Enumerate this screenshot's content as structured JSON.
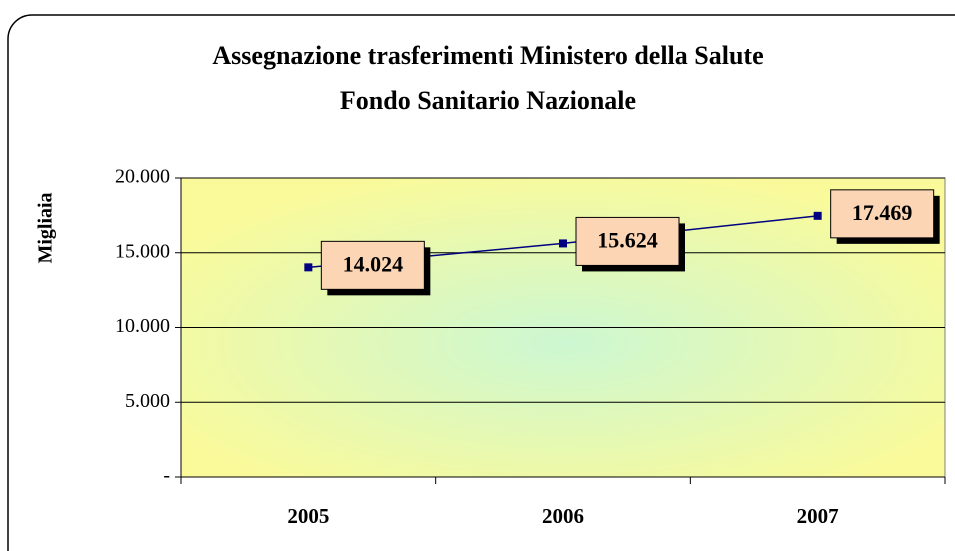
{
  "chart_data": {
    "type": "line",
    "title": "Assegnazione trasferimenti Ministero della Salute",
    "subtitle": "Fondo Sanitario Nazionale",
    "y_label": "Migliaia",
    "categories": [
      "2005",
      "2006",
      "2007"
    ],
    "series": [
      {
        "name": "Fondo Sanitario Nazionale",
        "color": "#000080",
        "values": [
          14024,
          15624,
          17469
        ],
        "value_labels": [
          "14.024",
          "15.624",
          "17.469"
        ]
      }
    ],
    "ylim": [
      0,
      20000
    ],
    "yticks": [
      {
        "value": 0,
        "label": "-"
      },
      {
        "value": 5000,
        "label": "5.000"
      },
      {
        "value": 10000,
        "label": "10.000"
      },
      {
        "value": 15000,
        "label": "15.000"
      },
      {
        "value": 20000,
        "label": "20.000"
      }
    ],
    "grid": true
  }
}
